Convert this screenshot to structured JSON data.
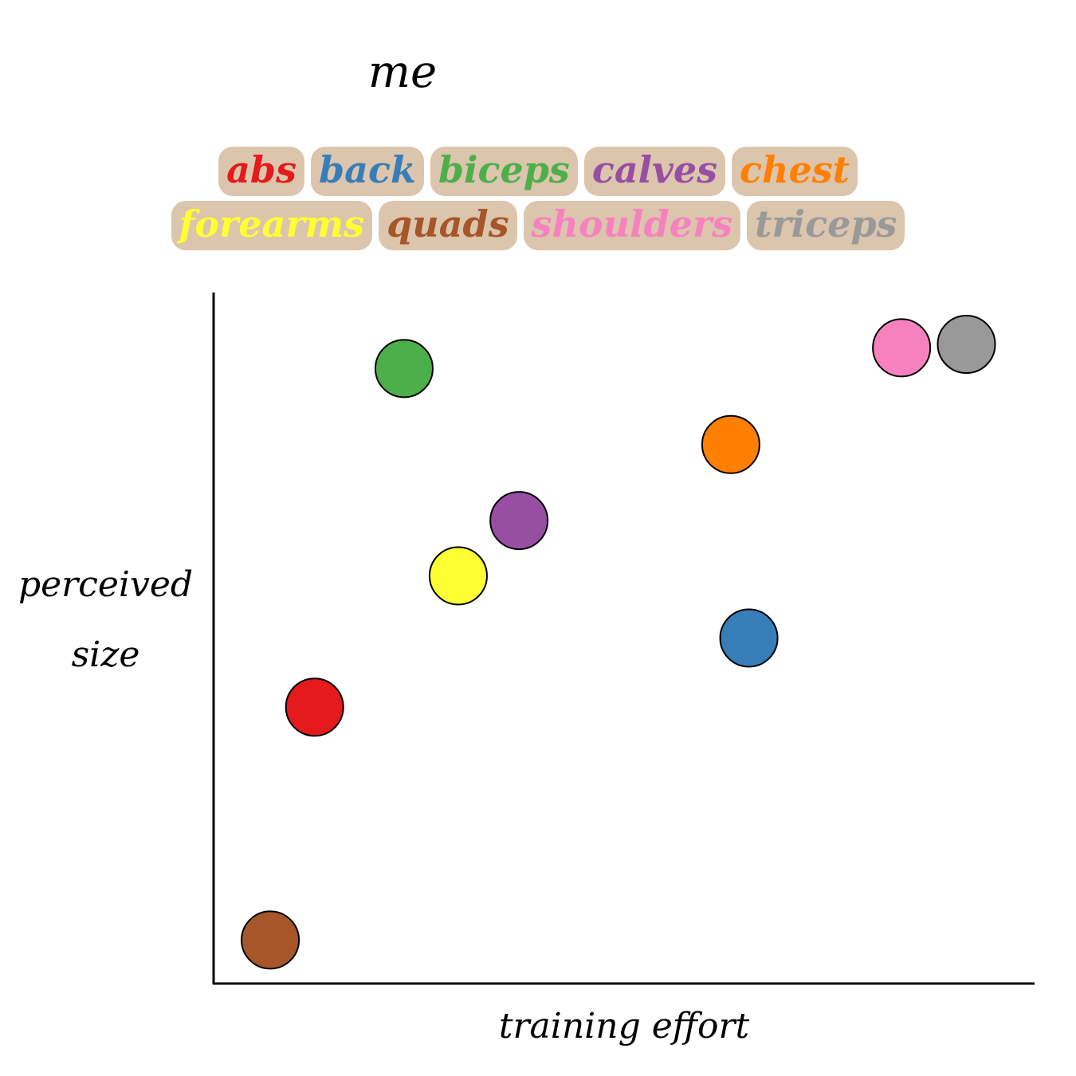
{
  "chart_data": {
    "type": "scatter",
    "title": "me",
    "xlabel": "training effort",
    "ylabel": "perceived size",
    "xlim": [
      0,
      10
    ],
    "ylim": [
      0,
      10
    ],
    "grid": false,
    "legend_placement": "top",
    "series": [
      {
        "name": "abs",
        "color": "#e41a1c",
        "x": 1.23,
        "y": 4.0
      },
      {
        "name": "back",
        "color": "#377eb8",
        "x": 6.52,
        "y": 5.0
      },
      {
        "name": "biceps",
        "color": "#4daf4a",
        "x": 2.32,
        "y": 8.9
      },
      {
        "name": "calves",
        "color": "#984ea3",
        "x": 3.72,
        "y": 6.7
      },
      {
        "name": "chest",
        "color": "#ff7f00",
        "x": 6.3,
        "y": 7.8
      },
      {
        "name": "forearms",
        "color": "#ffff33",
        "x": 2.98,
        "y": 5.9
      },
      {
        "name": "quads",
        "color": "#a65628",
        "x": 0.69,
        "y": 0.63
      },
      {
        "name": "shoulders",
        "color": "#f781bf",
        "x": 8.38,
        "y": 9.2
      },
      {
        "name": "triceps",
        "color": "#999999",
        "x": 9.17,
        "y": 9.25
      }
    ]
  }
}
